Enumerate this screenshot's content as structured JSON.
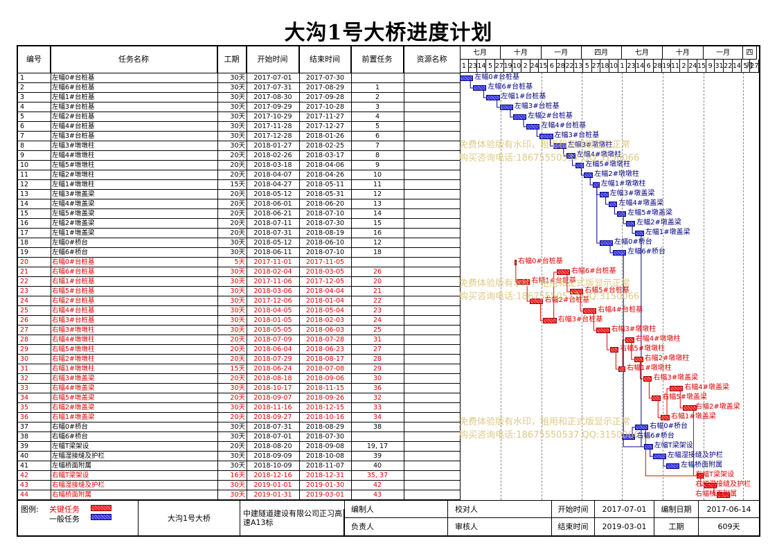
{
  "title": "大沟1号大桥进度计划",
  "columns": [
    "编号",
    "任务名称",
    "工期",
    "开始时间",
    "结束时间",
    "前置任务",
    "资源名称"
  ],
  "months": [
    "七月",
    "十月",
    "一月",
    "四月",
    "七月",
    "十月",
    "一月",
    "四月"
  ],
  "days": [
    "1",
    "23",
    "14",
    "5",
    "27",
    "19",
    "10",
    "2",
    "24",
    "15",
    "6",
    "28",
    "22",
    "13",
    "5",
    "27",
    "18",
    "10",
    "1",
    "23",
    "14",
    "6",
    "28",
    "19",
    "11",
    "2",
    "24",
    "15",
    "9",
    "31",
    "22",
    "14",
    "5",
    "27"
  ],
  "tasks": [
    {
      "id": "1",
      "name": "左幅0#台桩基",
      "dur": "30天",
      "start": "2017-07-01",
      "end": "2017-07-30",
      "pred": "",
      "critical": false
    },
    {
      "id": "2",
      "name": "左幅6#台桩基",
      "dur": "30天",
      "start": "2017-07-31",
      "end": "2017-08-29",
      "pred": "1",
      "critical": false
    },
    {
      "id": "3",
      "name": "左幅1#台桩基",
      "dur": "30天",
      "start": "2017-08-30",
      "end": "2017-09-28",
      "pred": "2",
      "critical": false
    },
    {
      "id": "4",
      "name": "左幅3#台桩基",
      "dur": "30天",
      "start": "2017-09-29",
      "end": "2017-10-28",
      "pred": "3",
      "critical": false
    },
    {
      "id": "5",
      "name": "左幅2#台桩基",
      "dur": "30天",
      "start": "2017-10-29",
      "end": "2017-11-27",
      "pred": "4",
      "critical": false
    },
    {
      "id": "6",
      "name": "左幅4#台桩基",
      "dur": "30天",
      "start": "2017-11-28",
      "end": "2017-12-27",
      "pred": "5",
      "critical": false
    },
    {
      "id": "7",
      "name": "左幅3#台桩基",
      "dur": "30天",
      "start": "2017-12-28",
      "end": "2018-01-26",
      "pred": "6",
      "critical": false
    },
    {
      "id": "8",
      "name": "左幅3#墩墩柱",
      "dur": "30天",
      "start": "2018-01-27",
      "end": "2018-02-25",
      "pred": "7",
      "critical": false
    },
    {
      "id": "9",
      "name": "左幅4#墩墩柱",
      "dur": "20天",
      "start": "2018-02-26",
      "end": "2018-03-17",
      "pred": "8",
      "critical": false
    },
    {
      "id": "10",
      "name": "左幅5#墩墩柱",
      "dur": "20天",
      "start": "2018-03-18",
      "end": "2018-04-06",
      "pred": "9",
      "critical": false
    },
    {
      "id": "11",
      "name": "左幅2#墩墩柱",
      "dur": "20天",
      "start": "2018-04-07",
      "end": "2018-04-26",
      "pred": "10",
      "critical": false
    },
    {
      "id": "12",
      "name": "左幅1#墩墩柱",
      "dur": "15天",
      "start": "2018-04-27",
      "end": "2018-05-11",
      "pred": "11",
      "critical": false
    },
    {
      "id": "13",
      "name": "左幅3#墩盖梁",
      "dur": "20天",
      "start": "2018-05-12",
      "end": "2018-05-31",
      "pred": "12",
      "critical": false
    },
    {
      "id": "14",
      "name": "左幅4#墩盖梁",
      "dur": "20天",
      "start": "2018-06-01",
      "end": "2018-06-20",
      "pred": "13",
      "critical": false
    },
    {
      "id": "15",
      "name": "左幅5#墩盖梁",
      "dur": "20天",
      "start": "2018-06-21",
      "end": "2018-07-10",
      "pred": "14",
      "critical": false
    },
    {
      "id": "16",
      "name": "左幅2#墩盖梁",
      "dur": "20天",
      "start": "2018-07-11",
      "end": "2018-07-30",
      "pred": "15",
      "critical": false
    },
    {
      "id": "17",
      "name": "左幅1#墩盖梁",
      "dur": "20天",
      "start": "2018-07-31",
      "end": "2018-08-19",
      "pred": "16",
      "critical": false
    },
    {
      "id": "18",
      "name": "左幅0#桥台",
      "dur": "30天",
      "start": "2018-05-12",
      "end": "2018-06-10",
      "pred": "12",
      "critical": false
    },
    {
      "id": "19",
      "name": "左幅6#桥台",
      "dur": "30天",
      "start": "2018-06-11",
      "end": "2018-07-10",
      "pred": "18",
      "critical": false
    },
    {
      "id": "20",
      "name": "右幅0#台桩基",
      "dur": "5天",
      "start": "2017-11-01",
      "end": "2017-11-05",
      "pred": "",
      "critical": true
    },
    {
      "id": "21",
      "name": "右幅6#台桩基",
      "dur": "30天",
      "start": "2018-02-04",
      "end": "2018-03-05",
      "pred": "26",
      "critical": true
    },
    {
      "id": "22",
      "name": "右幅1#台桩基",
      "dur": "30天",
      "start": "2017-11-06",
      "end": "2017-12-05",
      "pred": "20",
      "critical": true
    },
    {
      "id": "23",
      "name": "右幅5#台桩基",
      "dur": "30天",
      "start": "2018-03-06",
      "end": "2018-04-04",
      "pred": "21",
      "critical": true
    },
    {
      "id": "24",
      "name": "右幅2#台桩基",
      "dur": "30天",
      "start": "2017-12-06",
      "end": "2018-01-04",
      "pred": "22",
      "critical": true
    },
    {
      "id": "25",
      "name": "右幅4#台桩基",
      "dur": "30天",
      "start": "2018-04-05",
      "end": "2018-05-04",
      "pred": "23",
      "critical": true
    },
    {
      "id": "26",
      "name": "右幅3#台桩基",
      "dur": "30天",
      "start": "2018-01-05",
      "end": "2018-02-03",
      "pred": "24",
      "critical": true
    },
    {
      "id": "27",
      "name": "右幅3#墩墩柱",
      "dur": "30天",
      "start": "2018-05-05",
      "end": "2018-06-03",
      "pred": "25",
      "critical": true
    },
    {
      "id": "28",
      "name": "右幅4#墩墩柱",
      "dur": "20天",
      "start": "2018-07-09",
      "end": "2018-07-28",
      "pred": "31",
      "critical": true
    },
    {
      "id": "29",
      "name": "右幅5#墩墩柱",
      "dur": "20天",
      "start": "2018-06-04",
      "end": "2018-06-23",
      "pred": "27",
      "critical": true
    },
    {
      "id": "30",
      "name": "右幅2#墩墩柱",
      "dur": "20天",
      "start": "2018-07-29",
      "end": "2018-08-17",
      "pred": "28",
      "critical": true
    },
    {
      "id": "31",
      "name": "右幅1#墩墩柱",
      "dur": "15天",
      "start": "2018-06-24",
      "end": "2018-07-08",
      "pred": "29",
      "critical": true
    },
    {
      "id": "32",
      "name": "右幅3#墩盖梁",
      "dur": "20天",
      "start": "2018-08-18",
      "end": "2018-09-06",
      "pred": "30",
      "critical": true
    },
    {
      "id": "33",
      "name": "右幅4#墩盖梁",
      "dur": "30天",
      "start": "2018-10-17",
      "end": "2018-11-15",
      "pred": "36",
      "critical": true
    },
    {
      "id": "34",
      "name": "右幅5#墩盖梁",
      "dur": "20天",
      "start": "2018-09-07",
      "end": "2018-09-26",
      "pred": "32",
      "critical": true
    },
    {
      "id": "35",
      "name": "右幅2#墩盖梁",
      "dur": "30天",
      "start": "2018-11-16",
      "end": "2018-12-15",
      "pred": "33",
      "critical": true
    },
    {
      "id": "36",
      "name": "右幅1#墩盖梁",
      "dur": "20天",
      "start": "2018-09-27",
      "end": "2018-10-16",
      "pred": "34",
      "critical": true
    },
    {
      "id": "37",
      "name": "右幅0#桥台",
      "dur": "30天",
      "start": "2018-07-31",
      "end": "2018-08-29",
      "pred": "38",
      "critical": false
    },
    {
      "id": "38",
      "name": "右幅6#桥台",
      "dur": "30天",
      "start": "2018-07-01",
      "end": "2018-07-30",
      "pred": "",
      "critical": false
    },
    {
      "id": "39",
      "name": "左幅T梁架设",
      "dur": "20天",
      "start": "2018-08-20",
      "end": "2018-09-08",
      "pred": "19, 17",
      "critical": false
    },
    {
      "id": "40",
      "name": "左幅湿接缝及护栏",
      "dur": "30天",
      "start": "2018-09-09",
      "end": "2018-10-08",
      "pred": "39",
      "critical": false
    },
    {
      "id": "41",
      "name": "左幅桥面附属",
      "dur": "30天",
      "start": "2018-10-09",
      "end": "2018-11-07",
      "pred": "40",
      "critical": false
    },
    {
      "id": "42",
      "name": "右幅T梁架设",
      "dur": "16天",
      "start": "2018-12-16",
      "end": "2018-12-31",
      "pred": "35, 37",
      "critical": true
    },
    {
      "id": "43",
      "name": "右幅湿接缝及护栏",
      "dur": "30天",
      "start": "2019-01-01",
      "end": "2019-01-30",
      "pred": "42",
      "critical": true
    },
    {
      "id": "44",
      "name": "右幅桥面附属",
      "dur": "30天",
      "start": "2019-01-31",
      "end": "2019-03-01",
      "pred": "43",
      "critical": true
    }
  ],
  "watermark": {
    "line1": "免费体验版有水印，租用和正式版显示正常",
    "line2": "购买咨询电话:18675550537 QQ:3150066"
  },
  "footer": {
    "legend_label": "图例:",
    "legend_critical": "关键任务",
    "legend_normal": "一般任务",
    "project_name": "大沟1号大桥",
    "company": "中建隧道建设有限公司正习高速A13标",
    "editor_label": "编制人",
    "reviewer_label": "校对人",
    "start_label": "开始时间",
    "start_value": "2017-07-01",
    "date_label": "编制日期",
    "date_value": "2017-06-14",
    "owner_label": "负责人",
    "auditor_label": "审核人",
    "end_label": "结束时间",
    "end_value": "2019-03-01",
    "duration_label": "工期",
    "duration_value": "609天"
  },
  "colors": {
    "critical": "#e00000",
    "normal": "#000080",
    "critical_fill": "#ee2222",
    "normal_fill": "#3a3ad8"
  },
  "timeline": {
    "start": "2017-07-01",
    "end": "2019-04-30"
  }
}
